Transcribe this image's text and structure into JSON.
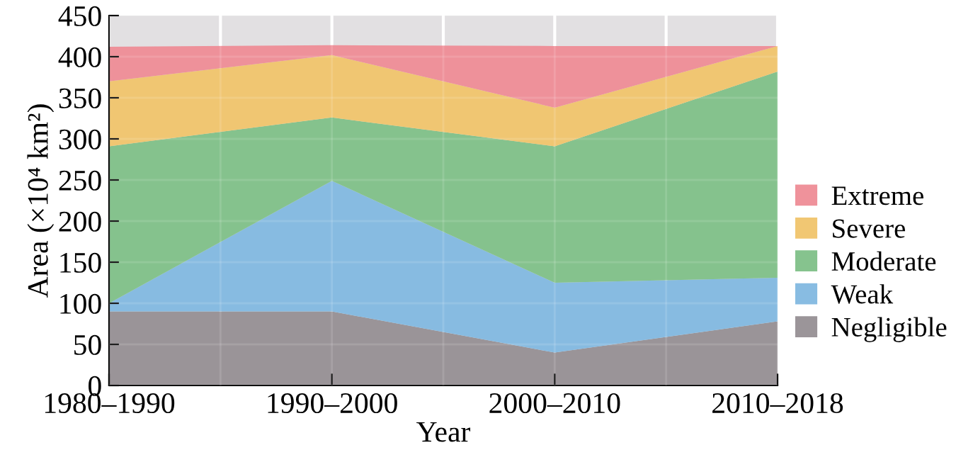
{
  "chart_data": {
    "type": "area",
    "stacked": true,
    "xlabel": "Year",
    "ylabel": "Area (×10⁴ km²)",
    "categories": [
      "1980–1990",
      "1990–2000",
      "2000–2010",
      "2010–2018"
    ],
    "series": [
      {
        "name": "Negligible",
        "color": "#968f94",
        "values": [
          90,
          90,
          40,
          78
        ]
      },
      {
        "name": "Weak",
        "color": "#82b8e0",
        "values": [
          10,
          159,
          85,
          53
        ]
      },
      {
        "name": "Moderate",
        "color": "#80c088",
        "values": [
          191,
          77,
          166,
          251
        ]
      },
      {
        "name": "Severe",
        "color": "#f0c46c",
        "values": [
          79,
          76,
          47,
          31
        ]
      },
      {
        "name": "Extreme",
        "color": "#ee8c96",
        "values": [
          42,
          12,
          75,
          0
        ]
      }
    ],
    "ylim": [
      0,
      450
    ],
    "yticks": [
      0,
      50,
      100,
      150,
      200,
      250,
      300,
      350,
      400,
      450
    ],
    "grid": true,
    "legend": "right"
  }
}
